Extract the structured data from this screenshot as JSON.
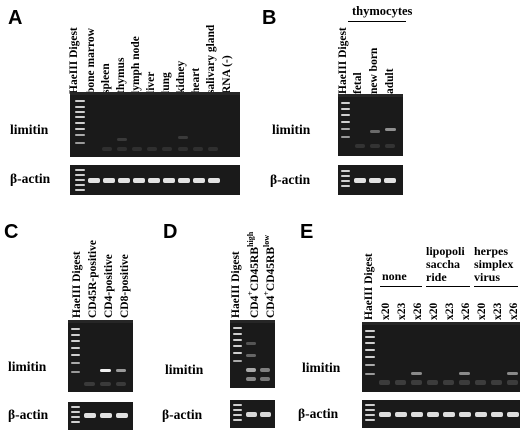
{
  "panels": [
    {
      "letter": "A",
      "lanes": [
        "HaeIII Digest",
        "bone marrow",
        "spleen",
        "thymus",
        "lymph node",
        "liver",
        "lung",
        "kidney",
        "heart",
        "salivary gland",
        "RNA (-)"
      ],
      "rows": [
        "limitin",
        "β-actin"
      ]
    },
    {
      "letter": "B",
      "group_label": "thymocytes",
      "lanes": [
        "HaeIII Digest",
        "fetal",
        "new born",
        "adult"
      ],
      "rows": [
        "limitin",
        "β-actin"
      ]
    },
    {
      "letter": "C",
      "lanes": [
        "HaeIII Digest",
        "CD45R-positive",
        "CD4-positive",
        "CD8-positive"
      ],
      "rows": [
        "limitin",
        "β-actin"
      ]
    },
    {
      "letter": "D",
      "lanes": [
        "HaeIII Digest",
        "CD4+CD45RBhigh",
        "CD4+CD45RBlow"
      ],
      "lane_parts": [
        {
          "base": "CD4",
          "sup1": "+",
          "mid": "CD45RB",
          "sup2": "high"
        },
        {
          "base": "CD4",
          "sup1": "+",
          "mid": "CD45RB",
          "sup2": "low"
        }
      ],
      "rows": [
        "limitin",
        "β-actin"
      ]
    },
    {
      "letter": "E",
      "lanes": [
        "HaeIII Digest",
        "x20",
        "x23",
        "x26",
        "x20",
        "x23",
        "x26",
        "x20",
        "x23",
        "x26"
      ],
      "groups": [
        "none",
        "lipopoli saccha ride",
        "herpes simplex virus"
      ],
      "group_lines": [
        [
          "none"
        ],
        [
          "lipopoli",
          "saccha",
          "ride"
        ],
        [
          "herpes",
          "simplex",
          "virus"
        ]
      ],
      "rows": [
        "limitin",
        "β-actin"
      ]
    }
  ]
}
